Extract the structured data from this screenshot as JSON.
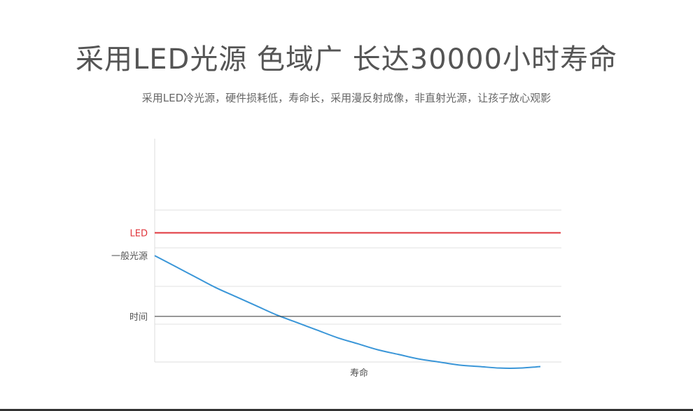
{
  "header": {
    "title": "采用LED光源 色域广 长达30000小时寿命",
    "subtitle": "采用LED冷光源，硬件损耗低，寿命长，采用漫反射成像，非直射光源，让孩子放心观影"
  },
  "chart_data": {
    "type": "line",
    "title": "",
    "xlabel": "寿命",
    "ylabel": "",
    "grid": true,
    "series": [
      {
        "name": "LED",
        "color": "#e0353b",
        "label_color": "#e0353b",
        "points": [
          [
            0,
            0.85
          ],
          [
            1,
            0.85
          ]
        ]
      },
      {
        "name": "一般光源",
        "color": "#3a96d8",
        "label_color": "#555555",
        "points": [
          [
            0,
            0.7
          ],
          [
            0.05,
            0.63
          ],
          [
            0.1,
            0.56
          ],
          [
            0.15,
            0.49
          ],
          [
            0.2,
            0.43
          ],
          [
            0.25,
            0.37
          ],
          [
            0.3,
            0.31
          ],
          [
            0.35,
            0.26
          ],
          [
            0.4,
            0.21
          ],
          [
            0.45,
            0.16
          ],
          [
            0.5,
            0.12
          ],
          [
            0.55,
            0.08
          ],
          [
            0.6,
            0.05
          ],
          [
            0.65,
            0.02
          ],
          [
            0.7,
            0.0
          ],
          [
            0.75,
            -0.02
          ],
          [
            0.8,
            -0.03
          ],
          [
            0.85,
            -0.04
          ],
          [
            0.9,
            -0.04
          ],
          [
            0.95,
            -0.03
          ]
        ]
      },
      {
        "name": "时间",
        "color": "#333333",
        "label_color": "#555555",
        "points": [
          [
            0,
            0.3
          ],
          [
            1,
            0.3
          ]
        ]
      }
    ]
  }
}
